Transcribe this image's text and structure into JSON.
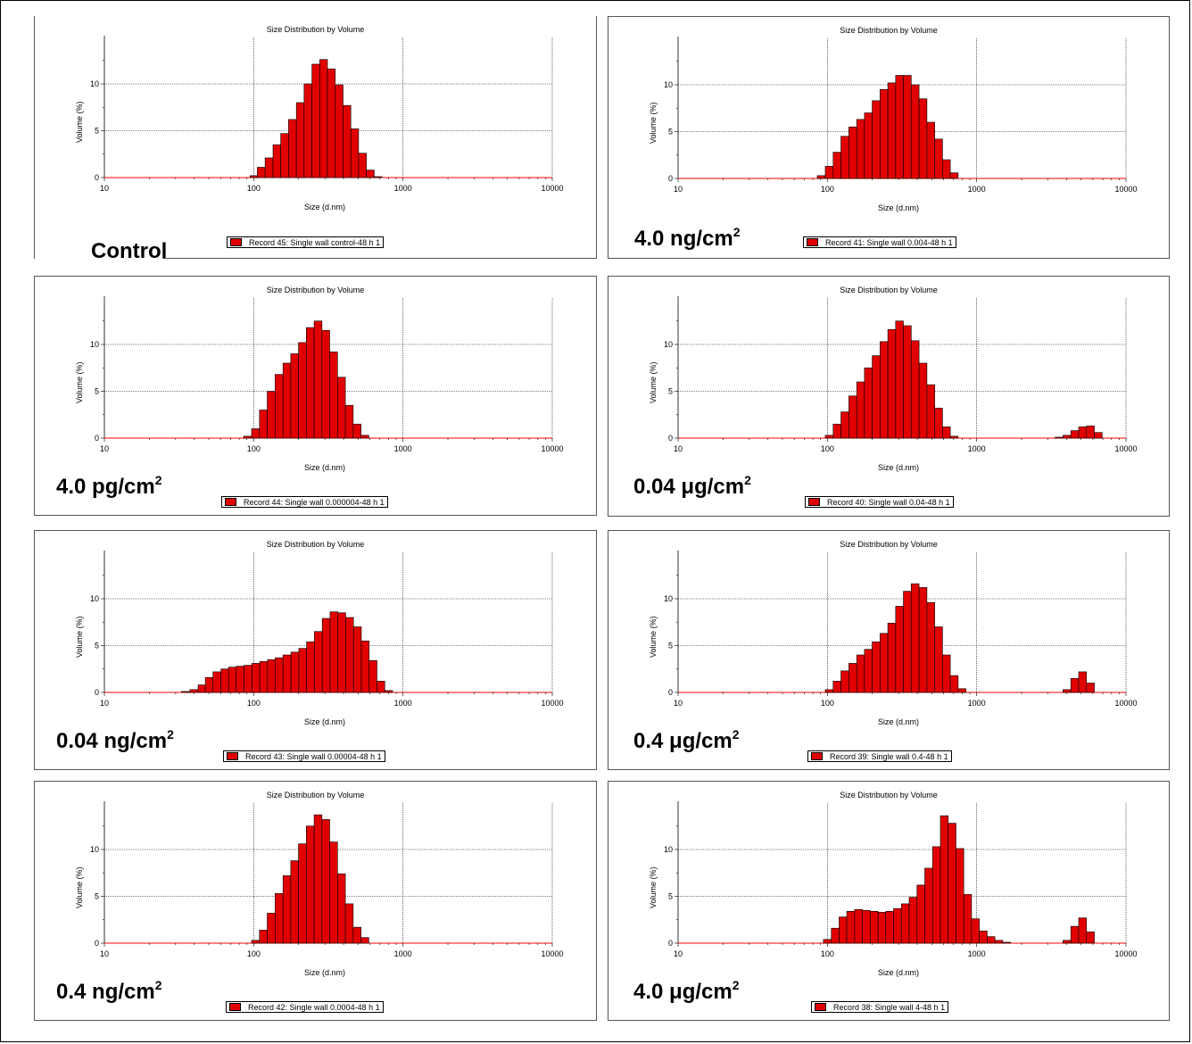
{
  "colors": {
    "bar": "#e00000",
    "bar_edge": "#000000",
    "baseline": "#ff0000",
    "grid": "#000000"
  },
  "common": {
    "chart_title": "Size Distribution by Volume",
    "xlabel": "Size (d.nm)",
    "ylabel": "Volume (%)",
    "xticks": [
      "10",
      "100",
      "1000",
      "10000"
    ],
    "yticks": [
      "0",
      "5",
      "10"
    ]
  },
  "chart_data": [
    {
      "type": "bar",
      "title": "Size Distribution by Volume",
      "concentration": "Control",
      "conc_unit": "",
      "legend": "Record 45: Single wall control-48 h 1",
      "xlabel": "Size (d.nm)",
      "ylabel": "Volume (%)",
      "xscale": "log",
      "xlim": [
        10,
        10000
      ],
      "ylim": [
        0,
        14
      ],
      "grid": true,
      "x": [
        100,
        112,
        127,
        143,
        161,
        182,
        205,
        231,
        261,
        294,
        331,
        374,
        421,
        475,
        535,
        604,
        681,
        767,
        865,
        975,
        1100
      ],
      "values": [
        0.2,
        1.1,
        2.1,
        3.5,
        4.7,
        6.2,
        8.0,
        10.0,
        12.1,
        12.6,
        11.6,
        9.9,
        7.7,
        5.2,
        2.6,
        0.8,
        0.1,
        0,
        0,
        0,
        0
      ]
    },
    {
      "type": "bar",
      "title": "Size Distribution by Volume",
      "concentration": "4.0 ng/cm",
      "conc_unit": "2",
      "legend": "Record 41: Single wall 0.004-48 h 1",
      "xlabel": "Size (d.nm)",
      "ylabel": "Volume (%)",
      "xscale": "log",
      "xlim": [
        10,
        10000
      ],
      "ylim": [
        0,
        14
      ],
      "grid": true,
      "x": [
        91,
        103,
        116,
        131,
        148,
        167,
        188,
        212,
        239,
        270,
        304,
        343,
        387,
        437,
        493,
        556,
        627,
        707,
        798,
        900
      ],
      "values": [
        0.3,
        1.3,
        2.8,
        4.5,
        5.5,
        6.3,
        7.0,
        8.3,
        9.5,
        10.2,
        11.0,
        11.0,
        10.0,
        8.5,
        6.0,
        4.2,
        2.0,
        0.6,
        0,
        0
      ]
    },
    {
      "type": "bar",
      "title": "Size Distribution by Volume",
      "concentration": "4.0  pg/cm",
      "conc_unit": "2",
      "legend": "Record 44: Single wall 0.000004-48 h 1",
      "xlabel": "Size (d.nm)",
      "ylabel": "Volume (%)",
      "xscale": "log",
      "xlim": [
        10,
        10000
      ],
      "ylim": [
        0,
        14
      ],
      "grid": true,
      "x": [
        91,
        103,
        116,
        131,
        148,
        167,
        188,
        212,
        239,
        270,
        304,
        343,
        387,
        437,
        493,
        556,
        627,
        707,
        798
      ],
      "values": [
        0.2,
        1.0,
        3.0,
        5.0,
        6.8,
        8.0,
        9.0,
        10.2,
        11.8,
        12.5,
        11.5,
        9.2,
        6.5,
        3.5,
        1.5,
        0.3,
        0,
        0,
        0
      ]
    },
    {
      "type": "bar",
      "title": "Size Distribution by Volume",
      "concentration": "0.04 μg/cm",
      "conc_unit": "2",
      "legend": "Record 40: Single wall 0.04-48 h 1",
      "xlabel": "Size (d.nm)",
      "ylabel": "Volume (%)",
      "xscale": "log",
      "xlim": [
        10,
        10000
      ],
      "ylim": [
        0,
        14
      ],
      "grid": true,
      "x": [
        91,
        103,
        116,
        131,
        148,
        167,
        188,
        212,
        239,
        270,
        304,
        343,
        387,
        437,
        493,
        556,
        627,
        707,
        798,
        900,
        3560,
        4020,
        4540,
        5120,
        5780,
        6520
      ],
      "values": [
        0,
        0.3,
        1.5,
        2.8,
        4.5,
        6.0,
        7.5,
        8.8,
        10.3,
        11.6,
        12.5,
        12.0,
        10.4,
        8.0,
        5.7,
        3.2,
        1.2,
        0.2,
        0,
        0,
        0.1,
        0.3,
        0.8,
        1.2,
        1.3,
        0.6
      ]
    },
    {
      "type": "bar",
      "title": "Size Distribution by Volume",
      "concentration": "0.04 ng/cm",
      "conc_unit": "2",
      "legend": "Record 43: Single wall 0.00004-48 h 1",
      "xlabel": "Size (d.nm)",
      "ylabel": "Volume (%)",
      "xscale": "log",
      "xlim": [
        10,
        10000
      ],
      "ylim": [
        0,
        14
      ],
      "grid": true,
      "x": [
        35,
        40,
        45,
        50,
        57,
        64,
        72,
        81,
        92,
        103,
        117,
        131,
        148,
        167,
        189,
        213,
        240,
        271,
        306,
        345,
        389,
        439,
        495,
        559,
        630,
        711,
        802,
        905,
        1020
      ],
      "values": [
        0.1,
        0.3,
        0.8,
        1.6,
        2.2,
        2.5,
        2.7,
        2.8,
        2.9,
        3.1,
        3.3,
        3.5,
        3.7,
        4.0,
        4.3,
        4.7,
        5.4,
        6.5,
        7.9,
        8.6,
        8.5,
        8.0,
        7.0,
        5.5,
        3.4,
        1.2,
        0.2,
        0,
        0
      ],
      "note_unused": ""
    },
    {
      "type": "bar",
      "title": "Size Distribution by Volume",
      "concentration": "0.4 μg/cm",
      "conc_unit": "2",
      "legend": "Record 39: Single wall 0.4-48 h 1",
      "xlabel": "Size (d.nm)",
      "ylabel": "Volume (%)",
      "xscale": "log",
      "xlim": [
        10,
        10000
      ],
      "ylim": [
        0,
        14
      ],
      "grid": true,
      "x": [
        91,
        103,
        116,
        131,
        148,
        167,
        188,
        212,
        239,
        270,
        304,
        343,
        387,
        437,
        493,
        556,
        627,
        707,
        798,
        900,
        4020,
        4540,
        5120,
        5780,
        6520
      ],
      "values": [
        0,
        0.3,
        1.2,
        2.3,
        3.1,
        4.0,
        4.6,
        5.4,
        6.3,
        7.4,
        9.2,
        10.8,
        11.6,
        11.2,
        9.6,
        7.0,
        4.0,
        1.8,
        0.4,
        0,
        0.3,
        1.5,
        2.2,
        1.0,
        0
      ]
    },
    {
      "type": "bar",
      "title": "Size Distribution by Volume",
      "concentration": "0.4 ng/cm",
      "conc_unit": "2",
      "legend": "Record 42: Single wall 0.0004-48 h 1",
      "xlabel": "Size (d.nm)",
      "ylabel": "Volume (%)",
      "xscale": "log",
      "xlim": [
        10,
        10000
      ],
      "ylim": [
        0,
        14
      ],
      "grid": true,
      "x": [
        91,
        103,
        116,
        131,
        148,
        167,
        188,
        212,
        239,
        270,
        304,
        343,
        387,
        437,
        493,
        556,
        627,
        707,
        798,
        900
      ],
      "values": [
        0,
        0.3,
        1.4,
        3.2,
        5.3,
        7.2,
        8.8,
        10.6,
        12.5,
        13.7,
        13.2,
        10.8,
        7.4,
        4.2,
        1.7,
        0.6,
        0,
        0,
        0,
        0
      ]
    },
    {
      "type": "bar",
      "title": "Size Distribution by Volume",
      "concentration": "4.0 μg/cm",
      "conc_unit": "2",
      "legend": "Record 38: Single wall 4-48 h 1",
      "xlabel": "Size (d.nm)",
      "ylabel": "Volume (%)",
      "xscale": "log",
      "xlim": [
        10,
        10000
      ],
      "ylim": [
        0,
        14
      ],
      "grid": true,
      "x": [
        100,
        113,
        127,
        143,
        162,
        182,
        206,
        232,
        261,
        295,
        332,
        375,
        423,
        477,
        538,
        607,
        684,
        772,
        870,
        981,
        1107,
        1248,
        1408,
        1588,
        1791,
        2020,
        4020,
        4540,
        5120,
        5780,
        6520
      ],
      "values": [
        0.4,
        1.6,
        2.8,
        3.4,
        3.6,
        3.5,
        3.4,
        3.3,
        3.4,
        3.7,
        4.2,
        4.9,
        6.2,
        8.0,
        10.3,
        13.6,
        12.8,
        10.1,
        5.2,
        2.6,
        1.3,
        0.7,
        0.3,
        0.1,
        0,
        0,
        0.3,
        1.8,
        2.7,
        1.2,
        0
      ]
    }
  ]
}
